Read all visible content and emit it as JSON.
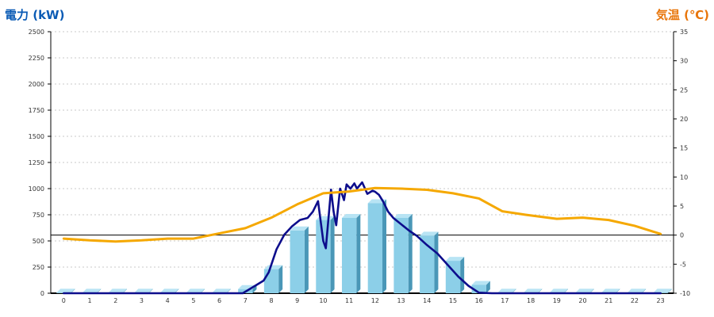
{
  "left_axis_title": "電力 (kW)",
  "right_axis_title": "気温 (℃)",
  "colors": {
    "left_title": "#0a5bb5",
    "right_title": "#e8750a",
    "bar_front": "#8ccfe8",
    "bar_top": "#b8e4f4",
    "bar_side": "#4a97b7",
    "power_line": "#0d0d8c",
    "temp_line": "#f5a800",
    "grid": "#c8c8c8",
    "axis": "#000000"
  },
  "chart_data": {
    "type": "bar",
    "categories": [
      "0",
      "1",
      "2",
      "3",
      "4",
      "5",
      "6",
      "7",
      "8",
      "9",
      "10",
      "11",
      "12",
      "13",
      "14",
      "15",
      "16",
      "17",
      "18",
      "19",
      "20",
      "21",
      "22",
      "23"
    ],
    "left_axis": {
      "label": "電力 (kW)",
      "ylim": [
        0,
        2500
      ],
      "ticks": [
        0,
        250,
        500,
        750,
        1000,
        1250,
        1500,
        1750,
        2000,
        2250,
        2500
      ]
    },
    "right_axis": {
      "label": "気温 (℃)",
      "ylim": [
        -10,
        35
      ],
      "ticks": [
        -10,
        -5,
        0,
        5,
        10,
        15,
        20,
        25,
        30,
        35
      ]
    },
    "grid": true,
    "series": [
      {
        "kind": "bar",
        "axis": "left",
        "values": [
          5,
          5,
          5,
          5,
          5,
          5,
          5,
          40,
          230,
          600,
          700,
          720,
          860,
          720,
          550,
          310,
          80,
          5,
          5,
          5,
          5,
          5,
          5,
          5
        ]
      },
      {
        "kind": "line",
        "axis": "left",
        "x": [
          0,
          1,
          2,
          3,
          4,
          5,
          6,
          6.9,
          7.3,
          7.7,
          7.9,
          8.2,
          8.5,
          8.8,
          9.1,
          9.4,
          9.6,
          9.8,
          10.0,
          10.1,
          10.3,
          10.4,
          10.5,
          10.65,
          10.8,
          10.9,
          11.05,
          11.2,
          11.3,
          11.5,
          11.7,
          11.9,
          12.0,
          12.15,
          12.3,
          12.5,
          12.7,
          13.0,
          13.3,
          13.6,
          14.0,
          14.4,
          14.8,
          15.2,
          15.6,
          16.0,
          16.5,
          17,
          18,
          19,
          20,
          21,
          22,
          23
        ],
        "values": [
          0,
          0,
          0,
          0,
          0,
          0,
          0,
          0,
          60,
          120,
          200,
          420,
          560,
          640,
          700,
          720,
          780,
          880,
          500,
          430,
          990,
          780,
          650,
          1000,
          890,
          1040,
          1000,
          1050,
          1000,
          1060,
          950,
          980,
          970,
          940,
          880,
          780,
          720,
          660,
          600,
          550,
          460,
          380,
          270,
          160,
          70,
          5,
          0,
          0,
          0,
          0,
          0,
          0,
          0,
          0
        ]
      },
      {
        "kind": "line",
        "axis": "right",
        "x": [
          0,
          1,
          2,
          3,
          4,
          5,
          6,
          7,
          8,
          9,
          10,
          11,
          12,
          13,
          14,
          15,
          16,
          16.9,
          17.8,
          19,
          20,
          21,
          22,
          23
        ],
        "values": [
          -0.6,
          -0.9,
          -1.1,
          -0.9,
          -0.6,
          -0.6,
          0.3,
          1.2,
          3.0,
          5.3,
          7.2,
          7.5,
          8.1,
          8.0,
          7.8,
          7.2,
          6.3,
          4.1,
          3.5,
          2.8,
          3.0,
          2.6,
          1.6,
          0.2
        ]
      }
    ]
  }
}
